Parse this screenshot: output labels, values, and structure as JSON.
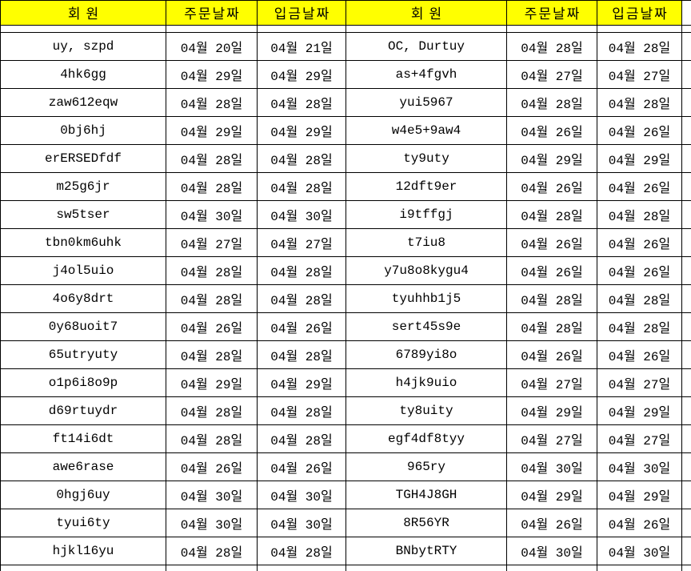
{
  "table": {
    "header": {
      "columns": [
        "회원",
        "주문날짜",
        "입금날짜",
        "회원",
        "주문날짜",
        "입금날짜"
      ]
    },
    "rows": [
      [
        "uy, szpd",
        "04월 20일",
        "04월 21일",
        "OC, Durtuy",
        "04월 28일",
        "04월 28일"
      ],
      [
        "4hk6gg",
        "04월 29일",
        "04월 29일",
        "as+4fgvh",
        "04월 27일",
        "04월 27일"
      ],
      [
        "zaw612eqw",
        "04월 28일",
        "04월 28일",
        "yui5967",
        "04월 28일",
        "04월 28일"
      ],
      [
        "0bj6hj",
        "04월 29일",
        "04월 29일",
        "w4e5+9aw4",
        "04월 26일",
        "04월 26일"
      ],
      [
        "erERSEDfdf",
        "04월 28일",
        "04월 28일",
        "ty9uty",
        "04월 29일",
        "04월 29일"
      ],
      [
        "m25g6jr",
        "04월 28일",
        "04월 28일",
        "12dft9er",
        "04월 26일",
        "04월 26일"
      ],
      [
        "sw5tser",
        "04월 30일",
        "04월 30일",
        "i9tffgj",
        "04월 28일",
        "04월 28일"
      ],
      [
        "tbn0km6uhk",
        "04월 27일",
        "04월 27일",
        "t7iu8",
        "04월 26일",
        "04월 26일"
      ],
      [
        "j4ol5uio",
        "04월 28일",
        "04월 28일",
        "y7u8o8kygu4",
        "04월 26일",
        "04월 26일"
      ],
      [
        "4o6y8drt",
        "04월 28일",
        "04월 28일",
        "tyuhhb1j5",
        "04월 28일",
        "04월 28일"
      ],
      [
        "0y68uoit7",
        "04월 26일",
        "04월 26일",
        "sert45s9e",
        "04월 28일",
        "04월 28일"
      ],
      [
        "65utryuty",
        "04월 28일",
        "04월 28일",
        "6789yi8o",
        "04월 26일",
        "04월 26일"
      ],
      [
        "o1p6i8o9p",
        "04월 29일",
        "04월 29일",
        "h4jk9uio",
        "04월 27일",
        "04월 27일"
      ],
      [
        "d69rtuydr",
        "04월 28일",
        "04월 28일",
        "ty8uity",
        "04월 29일",
        "04월 29일"
      ],
      [
        "ft14i6dt",
        "04월 28일",
        "04월 28일",
        "egf4df8tyy",
        "04월 27일",
        "04월 27일"
      ],
      [
        "awe6rase",
        "04월 26일",
        "04월 26일",
        "965ry",
        "04월 30일",
        "04월 30일"
      ],
      [
        "0hgj6uy",
        "04월 30일",
        "04월 30일",
        "TGH4J8GH",
        "04월 29일",
        "04월 29일"
      ],
      [
        "tyui6ty",
        "04월 30일",
        "04월 30일",
        "8R56YR",
        "04월 26일",
        "04월 26일"
      ],
      [
        "hjkl16yu",
        "04월 28일",
        "04월 28일",
        "BNbytRTY",
        "04월 30일",
        "04월 30일"
      ]
    ]
  },
  "colors": {
    "header_bg": "#FFFF00",
    "border": "#000000",
    "text": "#000000",
    "background": "#FFFFFF"
  }
}
